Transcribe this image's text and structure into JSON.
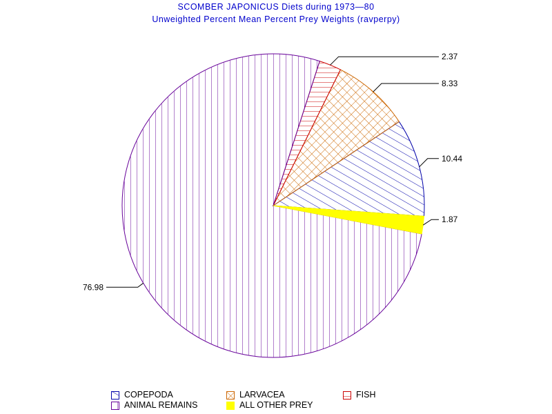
{
  "chart_data": {
    "type": "pie",
    "title": "SCOMBER JAPONICUS Diets during 1973—80",
    "subtitle": "Unweighted Percent Mean Percent Prey  Weights (ravperpy)",
    "slices": [
      {
        "name": "COPEPODA",
        "value": 10.44,
        "label": "10.44",
        "color": "#0000aa",
        "pattern": "diag-right"
      },
      {
        "name": "LARVACEA",
        "value": 8.33,
        "label": "8.33",
        "color": "#cc6600",
        "pattern": "crosshatch"
      },
      {
        "name": "FISH",
        "value": 2.37,
        "label": "2.37",
        "color": "#cc0000",
        "pattern": "horizontal"
      },
      {
        "name": "ANIMAL REMAINS",
        "value": 76.98,
        "label": "76.98",
        "color": "#660099",
        "pattern": "vertical"
      },
      {
        "name": "ALL OTHER PREY",
        "value": 1.87,
        "label": "1.87",
        "color": "#ffff00",
        "pattern": "solid"
      }
    ],
    "legend_position": "bottom"
  }
}
